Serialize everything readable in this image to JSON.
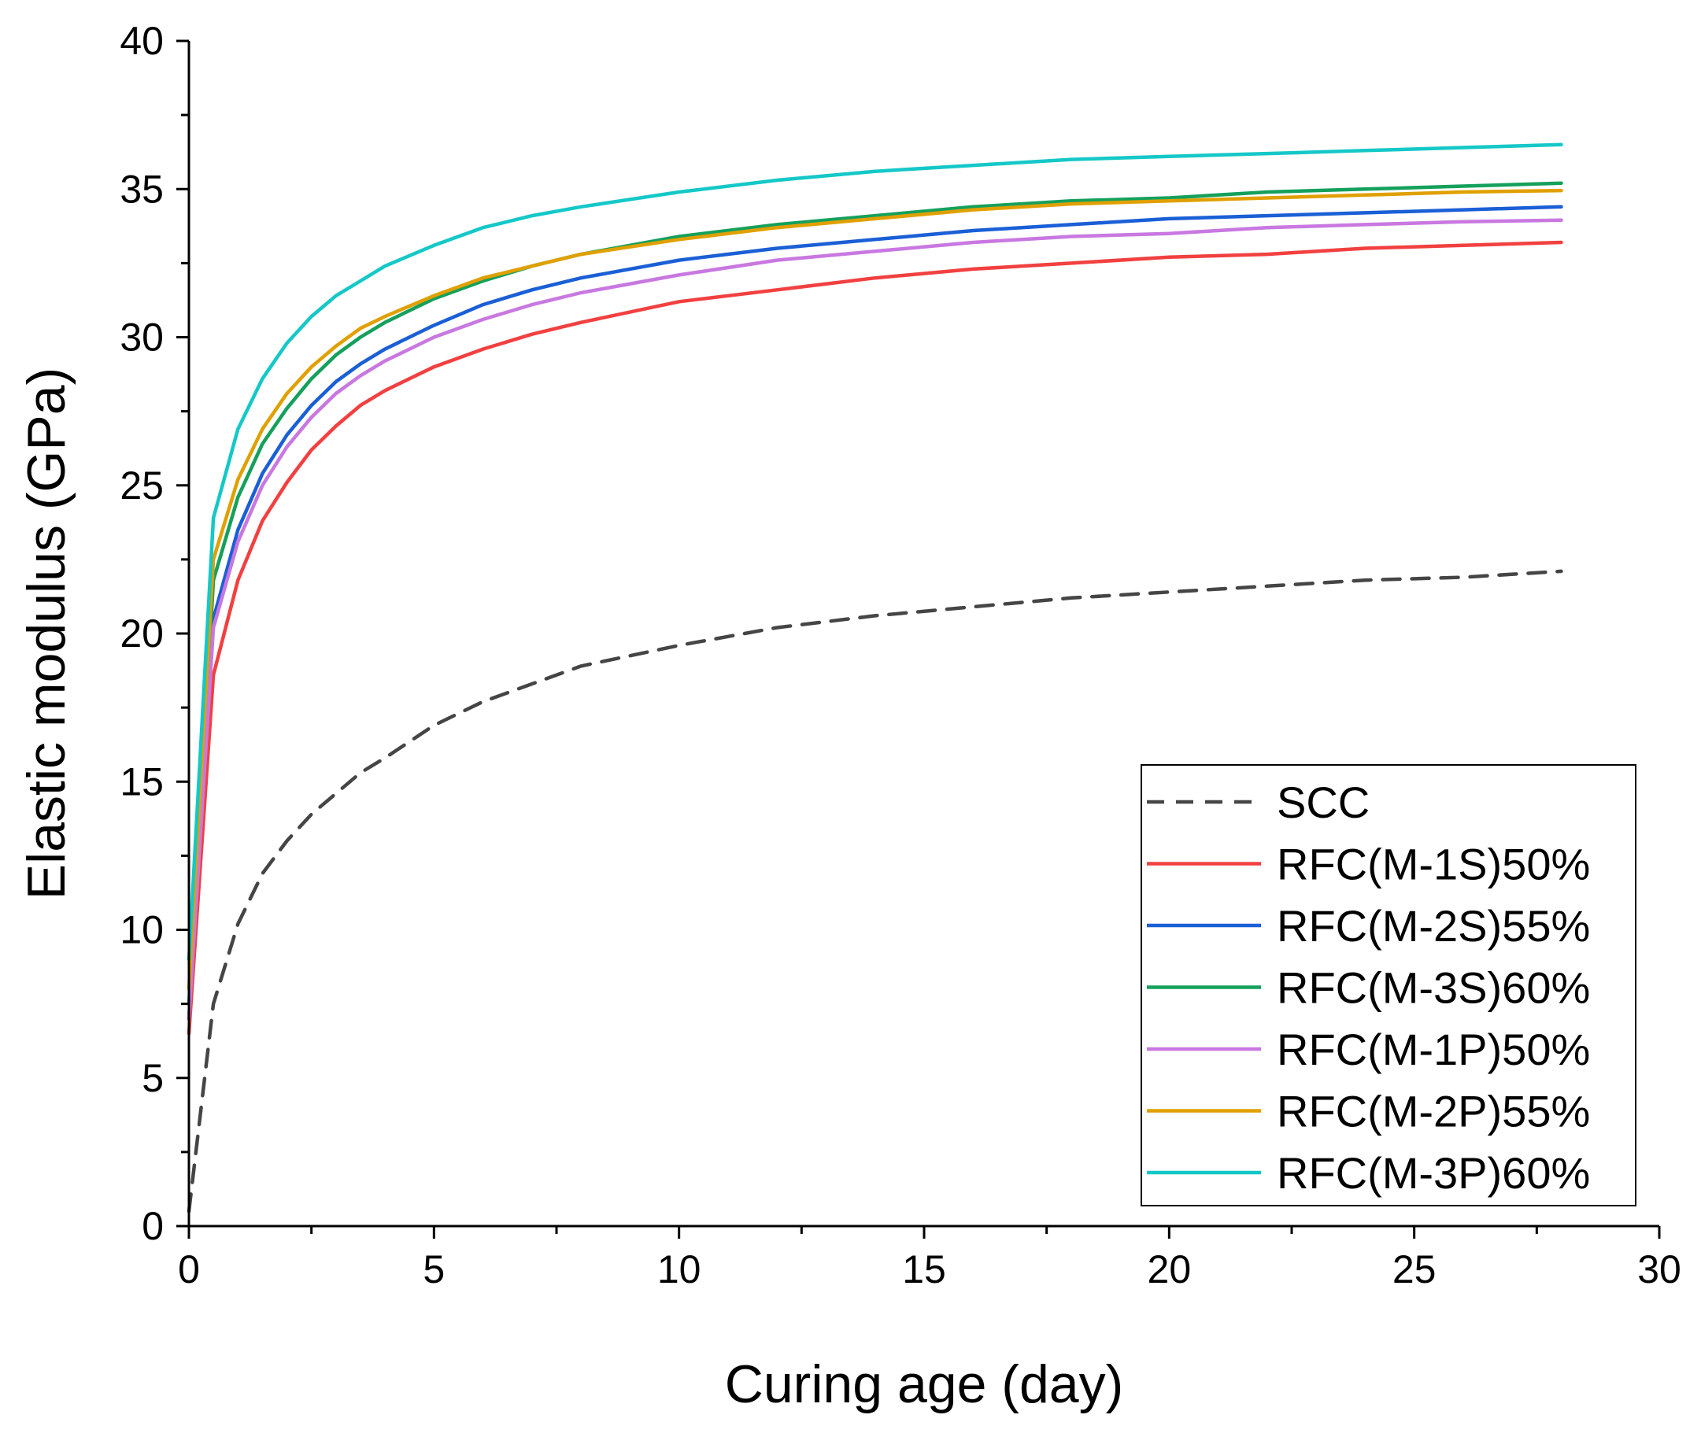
{
  "chart_data": {
    "type": "line",
    "title": "",
    "xlabel": "Curing age (day)",
    "ylabel": "Elastic modulus (GPa)",
    "xlim": [
      0,
      30
    ],
    "ylim": [
      0,
      40
    ],
    "x_major_ticks": [
      0,
      5,
      10,
      15,
      20,
      25,
      30
    ],
    "y_major_ticks": [
      0,
      5,
      10,
      15,
      20,
      25,
      30,
      35,
      40
    ],
    "x_minor_step": 2.5,
    "y_minor_step": 2.5,
    "grid": false,
    "legend_position": "bottom-right",
    "x": [
      0,
      0.5,
      1,
      1.5,
      2,
      2.5,
      3,
      3.5,
      4,
      5,
      6,
      7,
      8,
      10,
      12,
      14,
      16,
      18,
      20,
      22,
      24,
      26,
      28
    ],
    "series": [
      {
        "name": "SCC",
        "color": "#454545",
        "dash": true,
        "values": [
          0.5,
          7.5,
          10.2,
          11.9,
          13.0,
          13.9,
          14.6,
          15.3,
          15.8,
          16.9,
          17.7,
          18.3,
          18.9,
          19.6,
          20.2,
          20.6,
          20.9,
          21.2,
          21.4,
          21.6,
          21.8,
          21.9,
          22.1
        ]
      },
      {
        "name": "RFC(M-1S)50%",
        "color": "#f24040",
        "dash": false,
        "values": [
          6.5,
          18.6,
          21.8,
          23.8,
          25.1,
          26.2,
          27.0,
          27.7,
          28.2,
          29.0,
          29.6,
          30.1,
          30.5,
          31.2,
          31.6,
          32.0,
          32.3,
          32.5,
          32.7,
          32.8,
          33.0,
          33.1,
          33.2
        ]
      },
      {
        "name": "RFC(M-2S)55%",
        "color": "#1a5fd6",
        "dash": false,
        "values": [
          7.0,
          20.5,
          23.5,
          25.4,
          26.7,
          27.7,
          28.5,
          29.1,
          29.6,
          30.4,
          31.1,
          31.6,
          32.0,
          32.6,
          33.0,
          33.3,
          33.6,
          33.8,
          34.0,
          34.1,
          34.2,
          34.3,
          34.4
        ]
      },
      {
        "name": "RFC(M-3S)60%",
        "color": "#15a05c",
        "dash": false,
        "values": [
          7.5,
          21.8,
          24.6,
          26.4,
          27.6,
          28.6,
          29.4,
          30.0,
          30.5,
          31.3,
          31.9,
          32.4,
          32.8,
          33.4,
          33.8,
          34.1,
          34.4,
          34.6,
          34.7,
          34.9,
          35.0,
          35.1,
          35.2
        ]
      },
      {
        "name": "RFC(M-1P)50%",
        "color": "#c878e0",
        "dash": false,
        "values": [
          7.0,
          20.2,
          23.1,
          25.0,
          26.3,
          27.3,
          28.1,
          28.7,
          29.2,
          30.0,
          30.6,
          31.1,
          31.5,
          32.1,
          32.6,
          32.9,
          33.2,
          33.4,
          33.5,
          33.7,
          33.8,
          33.9,
          33.95
        ]
      },
      {
        "name": "RFC(M-2P)55%",
        "color": "#e0a000",
        "dash": false,
        "values": [
          8.0,
          22.5,
          25.2,
          26.9,
          28.1,
          29.0,
          29.7,
          30.3,
          30.7,
          31.4,
          32.0,
          32.4,
          32.8,
          33.3,
          33.7,
          34.0,
          34.3,
          34.5,
          34.6,
          34.7,
          34.8,
          34.9,
          34.95
        ]
      },
      {
        "name": "RFC(M-3P)60%",
        "color": "#15c8c8",
        "dash": false,
        "values": [
          9.0,
          23.9,
          26.9,
          28.6,
          29.8,
          30.7,
          31.4,
          31.9,
          32.4,
          33.1,
          33.7,
          34.1,
          34.4,
          34.9,
          35.3,
          35.6,
          35.8,
          36.0,
          36.1,
          36.2,
          36.3,
          36.4,
          36.5
        ]
      }
    ]
  }
}
